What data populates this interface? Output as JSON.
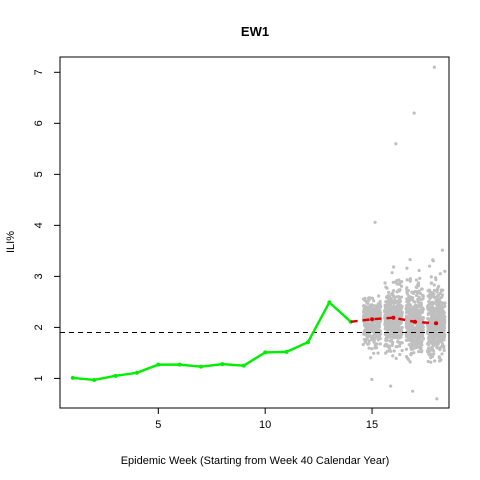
{
  "chart_data": {
    "type": "line",
    "title": "EW1",
    "xlabel": "Epidemic Week (Starting from Week 40 Calendar Year)",
    "ylabel": "ILI%",
    "xlim": [
      0.4,
      18.6
    ],
    "ylim": [
      0.42,
      7.3
    ],
    "x_ticks": [
      5,
      10,
      15
    ],
    "y_ticks": [
      1,
      2,
      3,
      4,
      5,
      6,
      7
    ],
    "grid": false,
    "legend": "none",
    "baseline": {
      "y": 1.9,
      "style": "dashed",
      "color": "#000000"
    },
    "observed": {
      "color": "#00ee00",
      "x": [
        1,
        2,
        3,
        4,
        5,
        6,
        7,
        8,
        9,
        10,
        11,
        12,
        13,
        14
      ],
      "y": [
        1.01,
        0.97,
        1.05,
        1.11,
        1.27,
        1.27,
        1.23,
        1.28,
        1.25,
        1.51,
        1.52,
        1.71,
        2.49,
        2.11
      ]
    },
    "forecast_median": {
      "color": "#dd0000",
      "x": [
        14,
        15,
        16,
        17,
        18
      ],
      "y": [
        2.11,
        2.16,
        2.19,
        2.11,
        2.08
      ]
    },
    "forecast_samples": {
      "color": "#bfbfbf",
      "weeks": [
        15,
        16,
        17,
        18
      ],
      "min": [
        0.98,
        0.85,
        0.75,
        0.6
      ],
      "max": [
        4.06,
        5.6,
        6.2,
        7.1
      ],
      "center": [
        2.16,
        2.19,
        2.11,
        2.08
      ]
    }
  }
}
